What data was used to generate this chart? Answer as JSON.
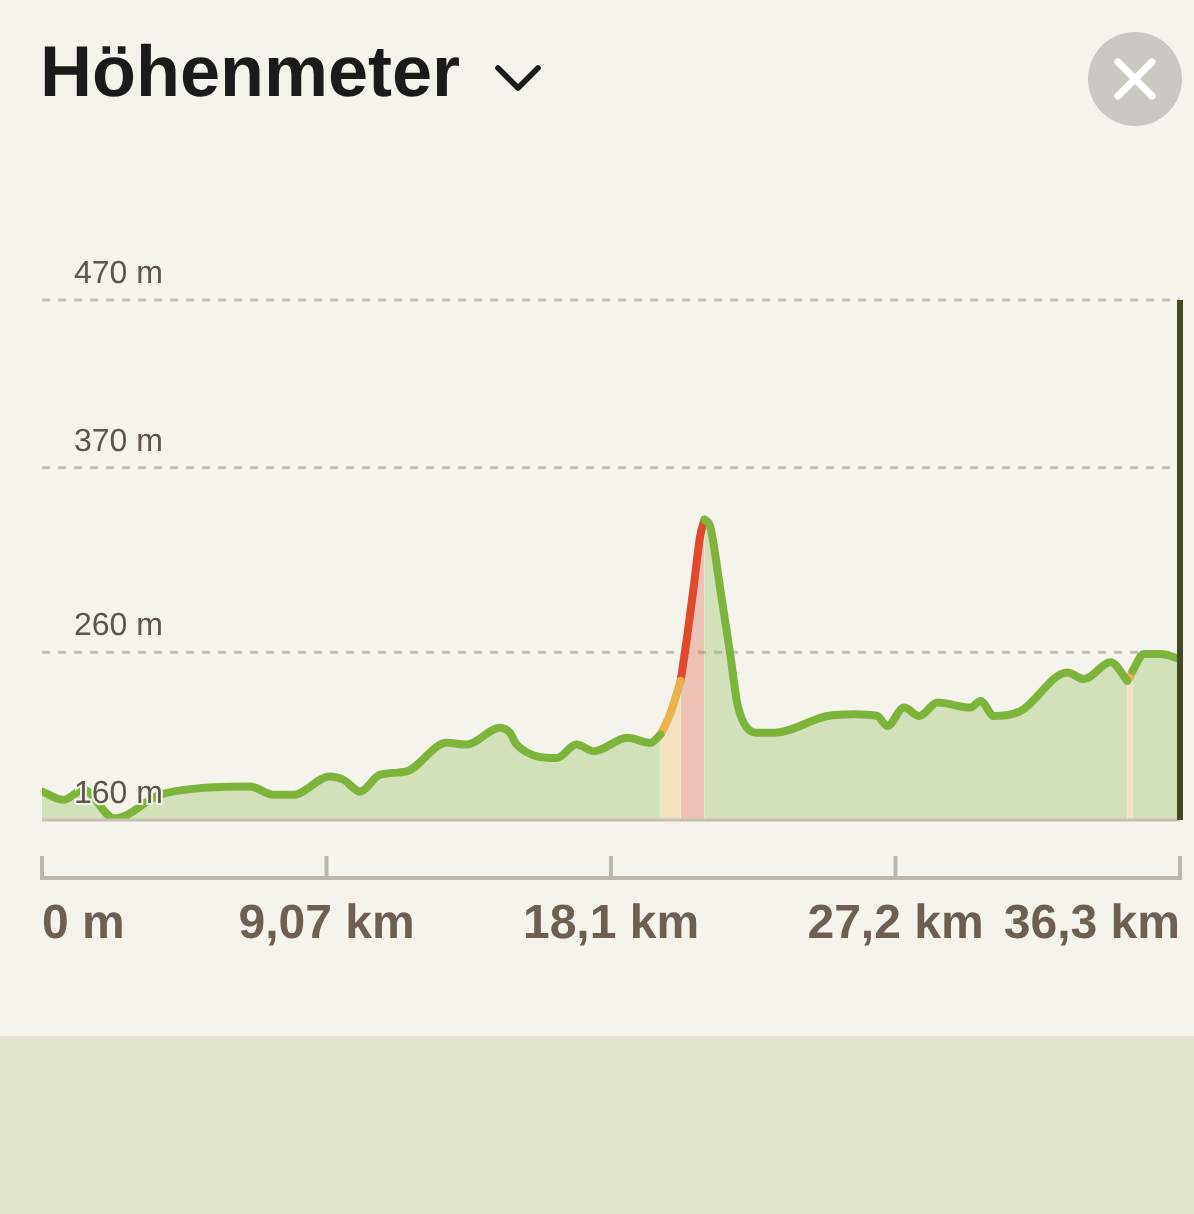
{
  "chart_data": {
    "type": "area",
    "title": "Höhenmeter",
    "x": [
      0,
      0.68,
      1.32,
      2.31,
      3.76,
      5.04,
      6.63,
      7.38,
      8.01,
      9.18,
      9.61,
      10.14,
      10.78,
      11.62,
      12.9,
      13.54,
      14.6,
      14.92,
      15.13,
      16.41,
      17.04,
      17.6,
      18.66,
      19.4,
      19.72,
      20.02,
      20.36,
      20.55,
      20.77,
      20.98,
      21.12,
      21.3,
      21.62,
      21.94,
      22.15,
      22.37,
      22.79,
      23.34,
      25.04,
      25.89,
      26.63,
      26.95,
      27.48,
      27.97,
      28.55,
      29.6,
      29.92,
      30.35,
      31.2,
      32.69,
      33.22,
      34.07,
      34.6,
      34.68,
      34.77,
      35.13,
      35.66,
      36.28
    ],
    "series": [
      {
        "color": "#7fb43c",
        "values": [
          177,
          172,
          178,
          161,
          175,
          179,
          180,
          175,
          175,
          186,
          184,
          177,
          187,
          189,
          206,
          205,
          215,
          212,
          205,
          197,
          205,
          201,
          209,
          206,
          211,
          null,
          null,
          null,
          null,
          null,
          339,
          335,
          298,
          259,
          231,
          218,
          212,
          212,
          222,
          223,
          222,
          216,
          227,
          222,
          230,
          227,
          231,
          222,
          225,
          248,
          244,
          254,
          243,
          null,
          249,
          259,
          259,
          256
        ]
      },
      {
        "color": "#e8b24c",
        "values": [
          null,
          null,
          null,
          null,
          null,
          null,
          null,
          null,
          null,
          null,
          null,
          null,
          null,
          null,
          null,
          null,
          null,
          null,
          null,
          null,
          null,
          null,
          null,
          null,
          211,
          223,
          243,
          null,
          null,
          null,
          null,
          null,
          null,
          null,
          null,
          null,
          null,
          null,
          null,
          null,
          null,
          null,
          null,
          null,
          null,
          null,
          null,
          null,
          null,
          null,
          null,
          null,
          243,
          245,
          249,
          null,
          null,
          null
        ]
      },
      {
        "color": "#e0492b",
        "values": [
          null,
          null,
          null,
          null,
          null,
          null,
          null,
          null,
          null,
          null,
          null,
          null,
          null,
          null,
          null,
          null,
          null,
          null,
          null,
          null,
          null,
          null,
          null,
          null,
          null,
          null,
          243,
          267,
          298,
          329,
          339,
          null,
          null,
          null,
          null,
          null,
          null,
          null,
          null,
          null,
          null,
          null,
          null,
          null,
          null,
          null,
          null,
          null,
          null,
          null,
          null,
          null,
          null,
          null,
          null,
          null,
          null,
          null
        ]
      }
    ],
    "xlim": [
      0,
      36.28
    ],
    "xticks": [
      {
        "value": 0,
        "label": "0 m"
      },
      {
        "value": 9.07,
        "label": "9,07 km"
      },
      {
        "value": 18.14,
        "label": "18,1 km"
      },
      {
        "value": 27.21,
        "label": "27,2 km"
      },
      {
        "value": 36.28,
        "label": "36,3 km"
      }
    ],
    "ylim": [
      160,
      470
    ],
    "yticks": [
      {
        "value": 160,
        "label": "160 m"
      },
      {
        "value": 260,
        "label": "260 m"
      },
      {
        "value": 370,
        "label": "370 m"
      },
      {
        "value": 470,
        "label": "470 m"
      }
    ],
    "grid": "y",
    "ref_lines": [
      {
        "axis": "x",
        "value": 36.28,
        "color": "#434a22"
      }
    ]
  }
}
